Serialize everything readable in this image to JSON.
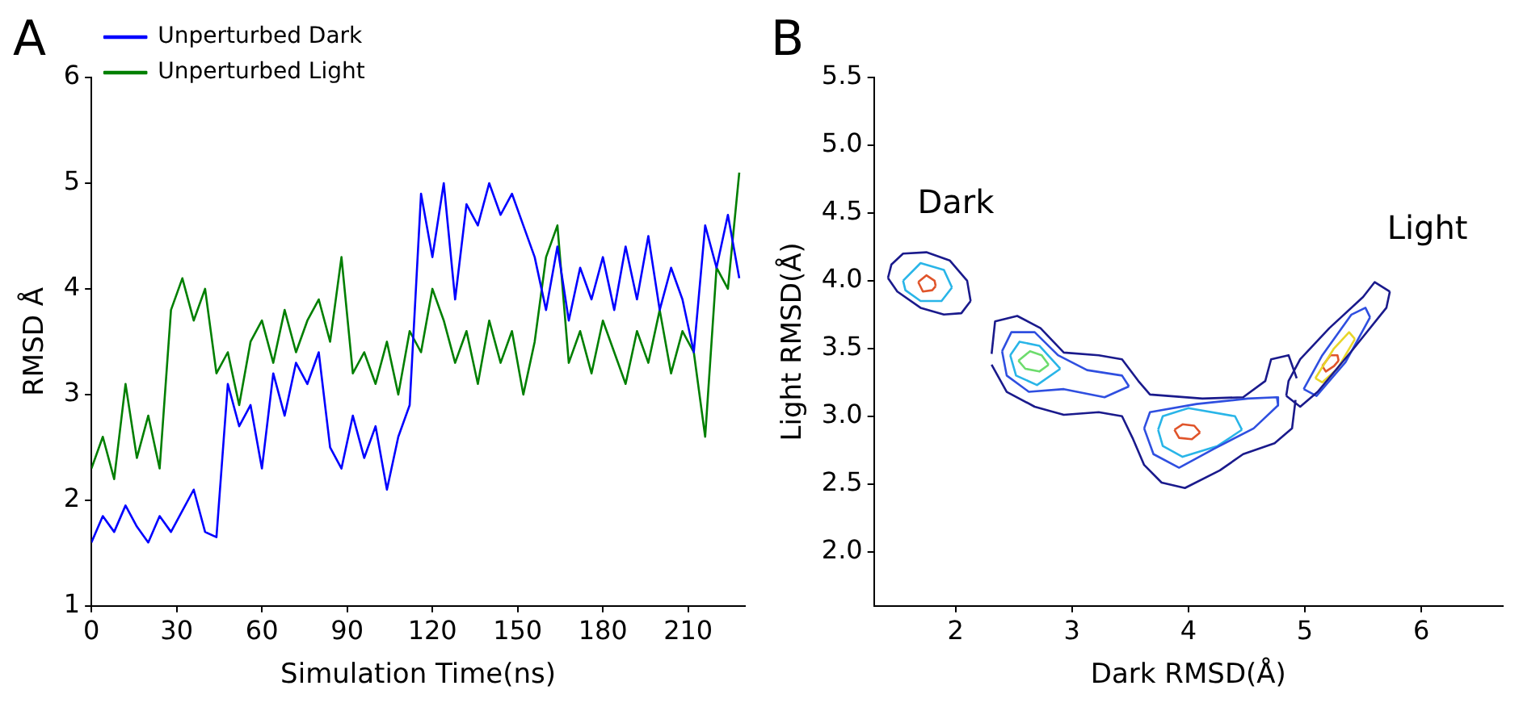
{
  "chart_data": [
    {
      "type": "line",
      "title": "A",
      "xlabel": "Simulation Time(ns)",
      "ylabel": "RMSD Å",
      "xlim": [
        0,
        230
      ],
      "xticks": [
        0,
        30,
        60,
        90,
        120,
        150,
        180,
        210
      ],
      "ylim": [
        1,
        6
      ],
      "yticks": [
        1,
        2,
        3,
        4,
        5,
        6
      ],
      "grid": false,
      "legend": "top left",
      "marker": "none",
      "x": [
        0,
        4,
        8,
        12,
        16,
        20,
        24,
        28,
        32,
        36,
        40,
        44,
        48,
        52,
        56,
        60,
        64,
        68,
        72,
        76,
        80,
        84,
        88,
        92,
        96,
        100,
        104,
        108,
        112,
        116,
        120,
        124,
        128,
        132,
        136,
        140,
        144,
        148,
        152,
        156,
        160,
        164,
        168,
        172,
        176,
        180,
        184,
        188,
        192,
        196,
        200,
        204,
        208,
        212,
        216,
        220,
        224,
        228
      ],
      "series": [
        {
          "name": "Unperturbed Dark",
          "color": "#0000ff",
          "values": [
            1.6,
            1.85,
            1.7,
            1.95,
            1.75,
            1.6,
            1.85,
            1.7,
            1.9,
            2.1,
            1.7,
            1.65,
            3.1,
            2.7,
            2.9,
            2.3,
            3.2,
            2.8,
            3.3,
            3.1,
            3.4,
            2.5,
            2.3,
            2.8,
            2.4,
            2.7,
            2.1,
            2.6,
            2.9,
            4.9,
            4.3,
            5.0,
            3.9,
            4.8,
            4.6,
            5.0,
            4.7,
            4.9,
            4.6,
            4.3,
            3.8,
            4.4,
            3.7,
            4.2,
            3.9,
            4.3,
            3.8,
            4.4,
            3.9,
            4.5,
            3.8,
            4.2,
            3.9,
            3.4,
            4.6,
            4.2,
            4.7,
            4.1
          ]
        },
        {
          "name": "Unperturbed Light",
          "color": "#007f00",
          "values": [
            2.3,
            2.6,
            2.2,
            3.1,
            2.4,
            2.8,
            2.3,
            3.8,
            4.1,
            3.7,
            4.0,
            3.2,
            3.4,
            2.9,
            3.5,
            3.7,
            3.3,
            3.8,
            3.4,
            3.7,
            3.9,
            3.5,
            4.3,
            3.2,
            3.4,
            3.1,
            3.5,
            3.0,
            3.6,
            3.4,
            4.0,
            3.7,
            3.3,
            3.6,
            3.1,
            3.7,
            3.3,
            3.6,
            3.0,
            3.5,
            4.3,
            4.6,
            3.3,
            3.6,
            3.2,
            3.7,
            3.4,
            3.1,
            3.6,
            3.3,
            3.8,
            3.2,
            3.6,
            3.4,
            2.6,
            4.2,
            4.0,
            5.1
          ]
        }
      ]
    },
    {
      "type": "line",
      "title": "B",
      "xlabel": "Dark RMSD(Å)",
      "ylabel": "Light RMSD(Å)",
      "xlim": [
        1.3,
        6.7
      ],
      "xticks": [
        2,
        3,
        4,
        5,
        6
      ],
      "ylim": [
        1.6,
        5.5
      ],
      "yticks": [
        {
          "value": 2,
          "label": "2.0"
        },
        {
          "value": 2.5,
          "label": "2.5"
        },
        {
          "value": 3,
          "label": "3.0"
        },
        {
          "value": 3.5,
          "label": "3.5"
        },
        {
          "value": 4,
          "label": "4.0"
        },
        {
          "value": 4.5,
          "label": "4.5"
        },
        {
          "value": 5,
          "label": "5.0"
        },
        {
          "value": 5.5,
          "label": "5.5"
        }
      ],
      "grid": false,
      "marker": "none",
      "series": [
        {
          "color": "#1a1a8c",
          "x": [
            1.42,
            1.45,
            1.55,
            1.75,
            1.95,
            2.1,
            2.13
          ],
          "values": [
            4.02,
            4.12,
            4.2,
            4.21,
            4.15,
            4.0,
            3.85
          ]
        },
        {
          "color": "#1a1a8c",
          "x": [
            1.42,
            1.5,
            1.7,
            1.9,
            2.05,
            2.13
          ],
          "values": [
            4.02,
            3.92,
            3.8,
            3.75,
            3.76,
            3.85
          ]
        },
        {
          "color": "#29b5e8",
          "x": [
            1.55,
            1.7,
            1.9,
            1.97
          ],
          "values": [
            4.0,
            4.13,
            4.08,
            3.95
          ]
        },
        {
          "color": "#29b5e8",
          "x": [
            1.55,
            1.57,
            1.7,
            1.88,
            1.97
          ],
          "values": [
            4.0,
            3.93,
            3.85,
            3.85,
            3.95
          ]
        },
        {
          "color": "#e0542a",
          "x": [
            1.68,
            1.75,
            1.82,
            1.83
          ],
          "values": [
            3.99,
            4.04,
            4.0,
            3.96
          ]
        },
        {
          "color": "#e0542a",
          "x": [
            1.68,
            1.72,
            1.8,
            1.83
          ],
          "values": [
            3.99,
            3.92,
            3.93,
            3.96
          ]
        },
        {
          "color": "#1a1a8c",
          "x": [
            2.31,
            2.34,
            2.53,
            2.73,
            2.93,
            3.23,
            3.43,
            3.57,
            3.67,
            4.12,
            4.47,
            4.66,
            4.71,
            4.86,
            4.93
          ],
          "values": [
            3.46,
            3.7,
            3.74,
            3.65,
            3.47,
            3.45,
            3.42,
            3.26,
            3.16,
            3.13,
            3.14,
            3.26,
            3.42,
            3.45,
            3.28
          ]
        },
        {
          "color": "#1a1a8c",
          "x": [
            2.31,
            2.44,
            2.68,
            2.93,
            3.23,
            3.43,
            3.52,
            3.62,
            3.77,
            3.97,
            4.27,
            4.47,
            4.74,
            4.89,
            4.92
          ],
          "values": [
            3.38,
            3.18,
            3.07,
            3.01,
            3.03,
            3.0,
            2.84,
            2.64,
            2.51,
            2.47,
            2.6,
            2.72,
            2.8,
            2.91,
            3.12
          ]
        },
        {
          "color": "#2f4fe0",
          "x": [
            2.4,
            2.48,
            2.68,
            2.88,
            3.13,
            3.43,
            3.49
          ],
          "values": [
            3.48,
            3.62,
            3.62,
            3.45,
            3.34,
            3.3,
            3.22
          ]
        },
        {
          "color": "#2f4fe0",
          "x": [
            2.4,
            2.44,
            2.63,
            2.93,
            3.28,
            3.49
          ],
          "values": [
            3.48,
            3.3,
            3.18,
            3.2,
            3.14,
            3.22
          ]
        },
        {
          "color": "#29b5e8",
          "x": [
            2.47,
            2.55,
            2.72,
            2.9
          ],
          "values": [
            3.45,
            3.55,
            3.52,
            3.35
          ]
        },
        {
          "color": "#29b5e8",
          "x": [
            2.47,
            2.52,
            2.7,
            2.9
          ],
          "values": [
            3.45,
            3.3,
            3.23,
            3.35
          ]
        },
        {
          "color": "#6ddc6d",
          "x": [
            2.54,
            2.64,
            2.74,
            2.8
          ],
          "values": [
            3.41,
            3.48,
            3.45,
            3.38
          ]
        },
        {
          "color": "#6ddc6d",
          "x": [
            2.54,
            2.6,
            2.72,
            2.8
          ],
          "values": [
            3.41,
            3.35,
            3.33,
            3.38
          ]
        },
        {
          "color": "#2f4fe0",
          "x": [
            3.62,
            3.67,
            4.07,
            4.51,
            4.76,
            4.77
          ],
          "values": [
            2.91,
            3.03,
            3.09,
            3.13,
            3.14,
            3.08
          ]
        },
        {
          "color": "#2f4fe0",
          "x": [
            3.62,
            3.7,
            3.92,
            4.22,
            4.56,
            4.77
          ],
          "values": [
            2.91,
            2.72,
            2.62,
            2.76,
            2.91,
            3.08
          ]
        },
        {
          "color": "#29b5e8",
          "x": [
            3.74,
            3.78,
            4.0,
            4.4,
            4.46
          ],
          "values": [
            2.9,
            3.0,
            3.06,
            3.0,
            2.9
          ]
        },
        {
          "color": "#29b5e8",
          "x": [
            3.74,
            3.78,
            3.95,
            4.25,
            4.46
          ],
          "values": [
            2.9,
            2.78,
            2.7,
            2.78,
            2.9
          ]
        },
        {
          "color": "#e0542a",
          "x": [
            3.88,
            3.95,
            4.05,
            4.1
          ],
          "values": [
            2.9,
            2.94,
            2.93,
            2.88
          ]
        },
        {
          "color": "#e0542a",
          "x": [
            3.88,
            3.92,
            4.03,
            4.1
          ],
          "values": [
            2.9,
            2.84,
            2.83,
            2.88
          ]
        },
        {
          "color": "#1a1a8c",
          "x": [
            4.84,
            4.86,
            4.96,
            5.21,
            5.5,
            5.6,
            5.73
          ],
          "values": [
            3.15,
            3.26,
            3.42,
            3.65,
            3.88,
            3.99,
            3.92
          ]
        },
        {
          "color": "#1a1a8c",
          "x": [
            4.84,
            4.96,
            5.11,
            5.41,
            5.7,
            5.73
          ],
          "values": [
            3.15,
            3.07,
            3.18,
            3.49,
            3.8,
            3.92
          ]
        },
        {
          "color": "#2f4fe0",
          "x": [
            4.99,
            5.15,
            5.4,
            5.52,
            5.56
          ],
          "values": [
            3.2,
            3.45,
            3.75,
            3.8,
            3.73
          ]
        },
        {
          "color": "#2f4fe0",
          "x": [
            4.99,
            5.1,
            5.35,
            5.56
          ],
          "values": [
            3.2,
            3.15,
            3.4,
            3.73
          ]
        },
        {
          "color": "#e8d62a",
          "x": [
            5.09,
            5.25,
            5.38,
            5.43
          ],
          "values": [
            3.28,
            3.5,
            3.62,
            3.57
          ]
        },
        {
          "color": "#e8d62a",
          "x": [
            5.09,
            5.15,
            5.28,
            5.43
          ],
          "values": [
            3.28,
            3.25,
            3.35,
            3.57
          ]
        },
        {
          "color": "#e0542a",
          "x": [
            5.15,
            5.22,
            5.28,
            5.29
          ],
          "values": [
            3.37,
            3.45,
            3.45,
            3.41
          ]
        },
        {
          "color": "#e0542a",
          "x": [
            5.15,
            5.18,
            5.25,
            5.29
          ],
          "values": [
            3.37,
            3.33,
            3.37,
            3.41
          ]
        }
      ],
      "annotations": [
        "Dark",
        "Light"
      ]
    }
  ]
}
